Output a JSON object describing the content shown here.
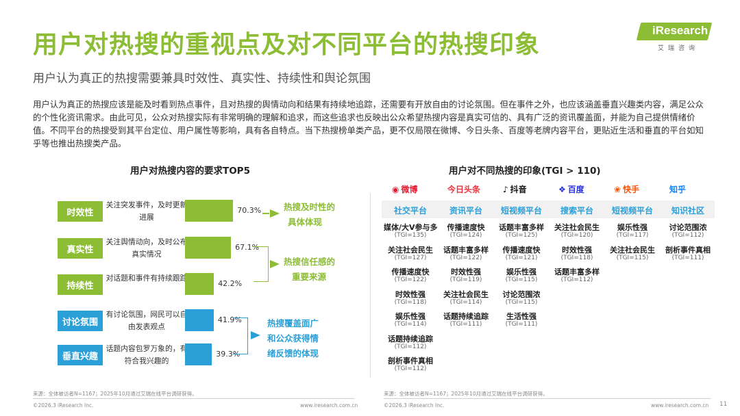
{
  "header": {
    "title": "用户对热搜的重视点及对不同平台的热搜印象",
    "subtitle": "用户认为真正的热搜需要兼具时效性、真实性、持续性和舆论氛围",
    "logo_text": "iResearch",
    "logo_sub": "艾瑞咨询",
    "intro": "用户认为真正的热搜应该是能及时看到热点事件，且对热搜的舆情动向和结果有持续地追踪，还需要有开放自由的讨论氛围。但在事件之外，也应该涵盖垂直兴趣类内容，满足公众的个性化资讯需求。由此可见，公众对热搜实际有非常明确的理解和追求，而这些追求也反映出公众希望热搜内容是真实可信的、具有广泛的资讯覆盖面，并能为自己提供情绪价值。不同平台的热搜受到其平台定位、用户属性等影响，具有各自特点。当下热搜榜单类产品，更不仅局限在微博、今日头条、百度等老牌内容平台，更贴近生活和垂直的平台如知乎等也推出热搜类产品。"
  },
  "chart_data": {
    "type": "bar",
    "orientation": "horizontal",
    "title": "用户对热搜内容的要求TOP5",
    "categories": [
      "时效性",
      "真实性",
      "持续性",
      "讨论氛围",
      "垂直兴趣"
    ],
    "descriptions": [
      "关注突发事件，及时更新进展",
      "关注舆情动向，及时公布真实情况",
      "对话题和事件有持续跟踪",
      "有讨论氛围，网民可以自由发表观点",
      "话题内容包罗万象的，有符合我兴趣的"
    ],
    "values": [
      70.3,
      67.1,
      42.2,
      41.9,
      39.3
    ],
    "value_labels": [
      "70.3%",
      "67.1%",
      "42.2%",
      "41.9%",
      "39.3%"
    ],
    "unit": "%",
    "xlim": [
      0,
      100
    ],
    "colors": [
      "#8cbd35",
      "#8cbd35",
      "#8cbd35",
      "#2a9fd8",
      "#2a9fd8"
    ],
    "annotations": [
      {
        "text": "热搜及时性的具体体现",
        "line1": "热搜及时性的",
        "line2": "具体体现",
        "covers": [
          "时效性"
        ]
      },
      {
        "text": "热搜信任感的重要来源",
        "line1": "热搜信任感的",
        "line2": "重要来源",
        "covers": [
          "真实性",
          "持续性"
        ]
      },
      {
        "text": "热搜覆盖面广和公众获得情绪反馈的体现",
        "line1": "热搜覆盖面广",
        "line2": "和公众获得情",
        "line3": "绪反馈的体现",
        "covers": [
          "讨论氛围",
          "垂直兴趣"
        ]
      }
    ]
  },
  "tgi_table": {
    "title": "用户对不同热搜的印象(TGI > 110)",
    "platforms": [
      {
        "brand": "微博",
        "category": "社交平台",
        "color": "#e6162d",
        "items": [
          [
            "媒体/大V参与多",
            "(TGI=135)"
          ],
          [
            "关注社会民生",
            "(TGI=127)"
          ],
          [
            "传播速度快",
            "(TGI=122)"
          ],
          [
            "时效性强",
            "(TGI=118)"
          ],
          [
            "娱乐性强",
            "(TGI=114)"
          ],
          [
            "话题持续追踪",
            "(TGI=112)"
          ],
          [
            "剖析事件真相",
            "(TGI=112)"
          ]
        ]
      },
      {
        "brand": "今日头条",
        "category": "资讯平台",
        "color": "#e8333c",
        "items": [
          [
            "传播速度快",
            "(TGI=124)"
          ],
          [
            "话题丰富多样",
            "(TGI=122)"
          ],
          [
            "时效性强",
            "(TGI=119)"
          ],
          [
            "关注社会民生",
            "(TGI=114)"
          ],
          [
            "话题持续追踪",
            "(TGI=111)"
          ]
        ]
      },
      {
        "brand": "抖音",
        "category": "短视频平台",
        "color": "#111111",
        "items": [
          [
            "话题丰富多样",
            "(TGI=125)"
          ],
          [
            "传播速度快",
            "(TGI=121)"
          ],
          [
            "娱乐性强",
            "(TGI=115)"
          ],
          [
            "讨论范围浓",
            "(TGI=115)"
          ],
          [
            "生活性强",
            "(TGI=111)"
          ]
        ]
      },
      {
        "brand": "百度",
        "category": "搜索平台",
        "color": "#2932e1",
        "items": [
          [
            "关注社会民生",
            "(TGI=120)"
          ],
          [
            "时效性强",
            "(TGI=118)"
          ],
          [
            "话题丰富多样",
            "(TGI=112)"
          ]
        ]
      },
      {
        "brand": "快手",
        "category": "短视频平台",
        "color": "#ff5000",
        "items": [
          [
            "娱乐性强",
            "(TGI=117)"
          ],
          [
            "关注社会民生",
            "(TGI=115)"
          ]
        ]
      },
      {
        "brand": "知乎",
        "category": "知识社区",
        "color": "#0a84ff",
        "items": [
          [
            "讨论范围浓",
            "(TGI=112)"
          ],
          [
            "剖析事件真相",
            "(TGI=111)"
          ]
        ]
      }
    ]
  },
  "footer": {
    "source_left": "来源：全体被访者N=1167；2025年10月通过艾瑞在线平台调研获得。",
    "source_right": "来源：全体被访者N=1167；2025年10月通过艾瑞在线平台调研获得。",
    "copyright_left": "©2026.3 iResearch Inc.",
    "url_left": "www.iresearch.com.cn",
    "copyright_right": "©2026.3 iResearch Inc.",
    "url_right": "www.iresearch.com.cn",
    "page": "11"
  }
}
